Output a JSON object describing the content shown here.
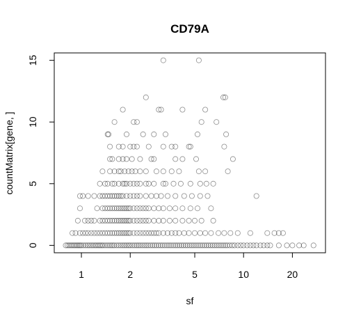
{
  "chart_data": {
    "type": "scatter",
    "title": "CD79A",
    "xlabel": "sf",
    "ylabel": "countMatrix[gene, ]",
    "x_scale": "log",
    "xlim": [
      0.68,
      32
    ],
    "ylim": [
      -0.6,
      15.6
    ],
    "x_ticks": [
      1,
      2,
      5,
      10,
      20
    ],
    "x_tick_labels": [
      "1",
      "2",
      "5",
      "10",
      "20"
    ],
    "y_ticks": [
      0,
      5,
      10,
      15
    ],
    "y_tick_labels": [
      "0",
      "5",
      "10",
      "15"
    ],
    "grid": false,
    "marker": "open-circle",
    "points": [
      [
        3.2,
        15
      ],
      [
        5.3,
        15
      ],
      [
        2.5,
        12
      ],
      [
        7.5,
        12
      ],
      [
        7.7,
        12
      ],
      [
        1.8,
        11
      ],
      [
        3.0,
        11
      ],
      [
        3.1,
        11
      ],
      [
        4.2,
        11
      ],
      [
        5.8,
        11
      ],
      [
        1.6,
        10
      ],
      [
        2.1,
        10
      ],
      [
        2.2,
        10
      ],
      [
        5.5,
        10
      ],
      [
        6.8,
        10
      ],
      [
        1.45,
        9
      ],
      [
        1.47,
        9
      ],
      [
        1.9,
        9
      ],
      [
        2.4,
        9
      ],
      [
        2.8,
        9
      ],
      [
        3.3,
        9
      ],
      [
        5.2,
        9
      ],
      [
        7.8,
        9
      ],
      [
        1.5,
        8
      ],
      [
        1.7,
        8
      ],
      [
        1.8,
        8
      ],
      [
        2.0,
        8
      ],
      [
        2.1,
        8
      ],
      [
        2.2,
        8
      ],
      [
        2.6,
        8
      ],
      [
        3.2,
        8
      ],
      [
        3.6,
        8
      ],
      [
        3.8,
        8
      ],
      [
        4.6,
        8
      ],
      [
        4.7,
        8
      ],
      [
        7.6,
        8
      ],
      [
        1.5,
        7
      ],
      [
        1.55,
        7
      ],
      [
        1.7,
        7
      ],
      [
        1.8,
        7
      ],
      [
        1.9,
        7
      ],
      [
        2.05,
        7
      ],
      [
        2.3,
        7
      ],
      [
        2.7,
        7
      ],
      [
        2.8,
        7
      ],
      [
        3.8,
        7
      ],
      [
        4.2,
        7
      ],
      [
        5.1,
        7
      ],
      [
        8.6,
        7
      ],
      [
        1.35,
        6
      ],
      [
        1.5,
        6
      ],
      [
        1.6,
        6
      ],
      [
        1.7,
        6
      ],
      [
        1.75,
        6
      ],
      [
        1.85,
        6
      ],
      [
        1.95,
        6
      ],
      [
        2.05,
        6
      ],
      [
        2.15,
        6
      ],
      [
        2.3,
        6
      ],
      [
        2.5,
        6
      ],
      [
        2.9,
        6
      ],
      [
        3.2,
        6
      ],
      [
        3.6,
        6
      ],
      [
        4.0,
        6
      ],
      [
        5.3,
        6
      ],
      [
        5.8,
        6
      ],
      [
        8.0,
        6
      ],
      [
        1.3,
        5
      ],
      [
        1.4,
        5
      ],
      [
        1.45,
        5
      ],
      [
        1.55,
        5
      ],
      [
        1.6,
        5
      ],
      [
        1.7,
        5
      ],
      [
        1.8,
        5
      ],
      [
        1.85,
        5
      ],
      [
        1.9,
        5
      ],
      [
        2.0,
        5
      ],
      [
        2.1,
        5
      ],
      [
        2.2,
        5
      ],
      [
        2.3,
        5
      ],
      [
        2.5,
        5
      ],
      [
        2.6,
        5
      ],
      [
        2.8,
        5
      ],
      [
        3.2,
        5
      ],
      [
        3.3,
        5
      ],
      [
        3.7,
        5
      ],
      [
        4.1,
        5
      ],
      [
        4.7,
        5
      ],
      [
        5.4,
        5
      ],
      [
        5.9,
        5
      ],
      [
        6.5,
        5
      ],
      [
        0.98,
        4
      ],
      [
        1.02,
        4
      ],
      [
        1.1,
        4
      ],
      [
        1.2,
        4
      ],
      [
        1.3,
        4
      ],
      [
        1.35,
        4
      ],
      [
        1.4,
        4
      ],
      [
        1.45,
        4
      ],
      [
        1.5,
        4
      ],
      [
        1.55,
        4
      ],
      [
        1.6,
        4
      ],
      [
        1.65,
        4
      ],
      [
        1.7,
        4
      ],
      [
        1.75,
        4
      ],
      [
        1.8,
        4
      ],
      [
        1.9,
        4
      ],
      [
        2.0,
        4
      ],
      [
        2.1,
        4
      ],
      [
        2.2,
        4
      ],
      [
        2.3,
        4
      ],
      [
        2.5,
        4
      ],
      [
        2.7,
        4
      ],
      [
        2.9,
        4
      ],
      [
        3.1,
        4
      ],
      [
        3.4,
        4
      ],
      [
        3.8,
        4
      ],
      [
        4.3,
        4
      ],
      [
        4.8,
        4
      ],
      [
        5.4,
        4
      ],
      [
        6.0,
        4
      ],
      [
        12.0,
        4
      ],
      [
        0.98,
        3
      ],
      [
        1.25,
        3
      ],
      [
        1.35,
        3
      ],
      [
        1.4,
        3
      ],
      [
        1.45,
        3
      ],
      [
        1.5,
        3
      ],
      [
        1.55,
        3
      ],
      [
        1.6,
        3
      ],
      [
        1.65,
        3
      ],
      [
        1.7,
        3
      ],
      [
        1.75,
        3
      ],
      [
        1.8,
        3
      ],
      [
        1.85,
        3
      ],
      [
        1.9,
        3
      ],
      [
        1.95,
        3
      ],
      [
        2.0,
        3
      ],
      [
        2.1,
        3
      ],
      [
        2.2,
        3
      ],
      [
        2.3,
        3
      ],
      [
        2.4,
        3
      ],
      [
        2.5,
        3
      ],
      [
        2.6,
        3
      ],
      [
        2.8,
        3
      ],
      [
        3.0,
        3
      ],
      [
        3.2,
        3
      ],
      [
        3.5,
        3
      ],
      [
        3.8,
        3
      ],
      [
        4.2,
        3
      ],
      [
        4.7,
        3
      ],
      [
        5.2,
        3
      ],
      [
        6.3,
        3
      ],
      [
        0.95,
        2
      ],
      [
        1.05,
        2
      ],
      [
        1.1,
        2
      ],
      [
        1.15,
        2
      ],
      [
        1.2,
        2
      ],
      [
        1.3,
        2
      ],
      [
        1.35,
        2
      ],
      [
        1.4,
        2
      ],
      [
        1.45,
        2
      ],
      [
        1.5,
        2
      ],
      [
        1.55,
        2
      ],
      [
        1.6,
        2
      ],
      [
        1.65,
        2
      ],
      [
        1.7,
        2
      ],
      [
        1.75,
        2
      ],
      [
        1.8,
        2
      ],
      [
        1.85,
        2
      ],
      [
        1.9,
        2
      ],
      [
        1.95,
        2
      ],
      [
        2.0,
        2
      ],
      [
        2.1,
        2
      ],
      [
        2.2,
        2
      ],
      [
        2.3,
        2
      ],
      [
        2.4,
        2
      ],
      [
        2.5,
        2
      ],
      [
        2.6,
        2
      ],
      [
        2.8,
        2
      ],
      [
        3.0,
        2
      ],
      [
        3.2,
        2
      ],
      [
        3.5,
        2
      ],
      [
        3.8,
        2
      ],
      [
        4.2,
        2
      ],
      [
        4.6,
        2
      ],
      [
        5.0,
        2
      ],
      [
        5.5,
        2
      ],
      [
        6.5,
        2
      ],
      [
        0.88,
        1
      ],
      [
        0.92,
        1
      ],
      [
        0.98,
        1
      ],
      [
        1.02,
        1
      ],
      [
        1.06,
        1
      ],
      [
        1.1,
        1
      ],
      [
        1.15,
        1
      ],
      [
        1.2,
        1
      ],
      [
        1.25,
        1
      ],
      [
        1.3,
        1
      ],
      [
        1.35,
        1
      ],
      [
        1.4,
        1
      ],
      [
        1.45,
        1
      ],
      [
        1.5,
        1
      ],
      [
        1.55,
        1
      ],
      [
        1.6,
        1
      ],
      [
        1.65,
        1
      ],
      [
        1.7,
        1
      ],
      [
        1.75,
        1
      ],
      [
        1.8,
        1
      ],
      [
        1.85,
        1
      ],
      [
        1.9,
        1
      ],
      [
        1.95,
        1
      ],
      [
        2.0,
        1
      ],
      [
        2.1,
        1
      ],
      [
        2.2,
        1
      ],
      [
        2.3,
        1
      ],
      [
        2.4,
        1
      ],
      [
        2.5,
        1
      ],
      [
        2.6,
        1
      ],
      [
        2.7,
        1
      ],
      [
        2.8,
        1
      ],
      [
        2.9,
        1
      ],
      [
        3.0,
        1
      ],
      [
        3.2,
        1
      ],
      [
        3.4,
        1
      ],
      [
        3.6,
        1
      ],
      [
        3.8,
        1
      ],
      [
        4.0,
        1
      ],
      [
        4.3,
        1
      ],
      [
        4.6,
        1
      ],
      [
        5.0,
        1
      ],
      [
        5.4,
        1
      ],
      [
        5.8,
        1
      ],
      [
        6.3,
        1
      ],
      [
        7.0,
        1
      ],
      [
        7.6,
        1
      ],
      [
        8.3,
        1
      ],
      [
        9.2,
        1
      ],
      [
        11.0,
        1
      ],
      [
        14.0,
        1
      ],
      [
        15.5,
        1
      ],
      [
        16.5,
        1
      ],
      [
        17.5,
        1
      ],
      [
        0.8,
        0
      ],
      [
        0.82,
        0
      ],
      [
        0.84,
        0
      ],
      [
        0.86,
        0
      ],
      [
        0.88,
        0
      ],
      [
        0.9,
        0
      ],
      [
        0.92,
        0
      ],
      [
        0.94,
        0
      ],
      [
        0.96,
        0
      ],
      [
        0.98,
        0
      ],
      [
        1.0,
        0
      ],
      [
        1.03,
        0
      ],
      [
        1.06,
        0
      ],
      [
        1.09,
        0
      ],
      [
        1.12,
        0
      ],
      [
        1.15,
        0
      ],
      [
        1.18,
        0
      ],
      [
        1.21,
        0
      ],
      [
        1.24,
        0
      ],
      [
        1.27,
        0
      ],
      [
        1.3,
        0
      ],
      [
        1.33,
        0
      ],
      [
        1.36,
        0
      ],
      [
        1.4,
        0
      ],
      [
        1.44,
        0
      ],
      [
        1.48,
        0
      ],
      [
        1.52,
        0
      ],
      [
        1.56,
        0
      ],
      [
        1.6,
        0
      ],
      [
        1.65,
        0
      ],
      [
        1.7,
        0
      ],
      [
        1.75,
        0
      ],
      [
        1.8,
        0
      ],
      [
        1.85,
        0
      ],
      [
        1.9,
        0
      ],
      [
        1.95,
        0
      ],
      [
        2.0,
        0
      ],
      [
        2.06,
        0
      ],
      [
        2.12,
        0
      ],
      [
        2.18,
        0
      ],
      [
        2.24,
        0
      ],
      [
        2.3,
        0
      ],
      [
        2.37,
        0
      ],
      [
        2.44,
        0
      ],
      [
        2.51,
        0
      ],
      [
        2.58,
        0
      ],
      [
        2.66,
        0
      ],
      [
        2.74,
        0
      ],
      [
        2.82,
        0
      ],
      [
        2.9,
        0
      ],
      [
        2.99,
        0
      ],
      [
        3.08,
        0
      ],
      [
        3.17,
        0
      ],
      [
        3.27,
        0
      ],
      [
        3.37,
        0
      ],
      [
        3.47,
        0
      ],
      [
        3.57,
        0
      ],
      [
        3.68,
        0
      ],
      [
        3.79,
        0
      ],
      [
        3.9,
        0
      ],
      [
        4.02,
        0
      ],
      [
        4.14,
        0
      ],
      [
        4.26,
        0
      ],
      [
        4.39,
        0
      ],
      [
        4.52,
        0
      ],
      [
        4.66,
        0
      ],
      [
        4.8,
        0
      ],
      [
        4.94,
        0
      ],
      [
        5.09,
        0
      ],
      [
        5.24,
        0
      ],
      [
        5.4,
        0
      ],
      [
        5.56,
        0
      ],
      [
        5.73,
        0
      ],
      [
        5.9,
        0
      ],
      [
        6.08,
        0
      ],
      [
        6.26,
        0
      ],
      [
        6.45,
        0
      ],
      [
        6.64,
        0
      ],
      [
        6.84,
        0
      ],
      [
        7.05,
        0
      ],
      [
        7.26,
        0
      ],
      [
        7.48,
        0
      ],
      [
        7.7,
        0
      ],
      [
        7.93,
        0
      ],
      [
        8.2,
        0
      ],
      [
        8.5,
        0
      ],
      [
        8.8,
        0
      ],
      [
        9.2,
        0
      ],
      [
        9.6,
        0
      ],
      [
        10.0,
        0
      ],
      [
        10.5,
        0
      ],
      [
        11.0,
        0
      ],
      [
        11.5,
        0
      ],
      [
        12.0,
        0
      ],
      [
        12.7,
        0
      ],
      [
        13.3,
        0
      ],
      [
        14.0,
        0
      ],
      [
        14.6,
        0
      ],
      [
        16.5,
        0
      ],
      [
        18.5,
        0
      ],
      [
        20.0,
        0
      ],
      [
        22.0,
        0
      ],
      [
        23.5,
        0
      ],
      [
        27.0,
        0
      ]
    ]
  }
}
